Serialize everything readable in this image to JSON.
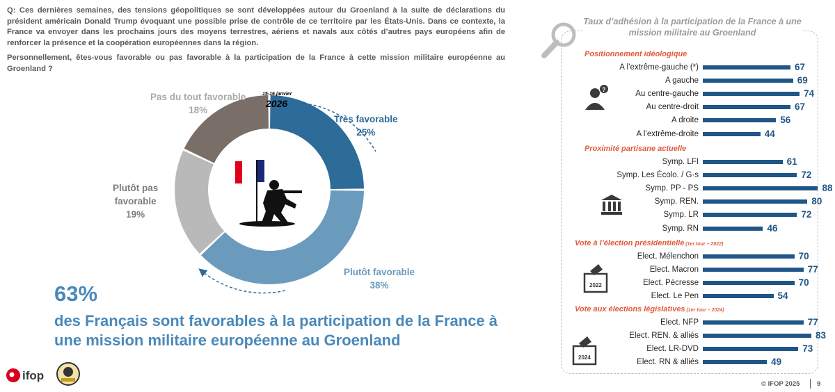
{
  "question": {
    "paragraph1": "Q: Ces dernières semaines, des tensions géopolitiques se sont développées autour du Groenland à la suite de déclarations du président américain Donald Trump évoquant une possible prise de contrôle de ce territoire par les États-Unis. Dans ce contexte, la France va envoyer dans les prochains jours des moyens terrestres, aériens et navals aux côtés d’autres pays européens afin de renforcer la présence et la coopération européennes dans la région.",
    "paragraph2": "Personnellement, êtes-vous favorable ou pas favorable à la participation de la France à cette mission militaire européenne au Groenland ?"
  },
  "donut": {
    "date_small": "15-16 janvier",
    "date_big": "2026",
    "colors": [
      "#2d6b99",
      "#6a9bbd",
      "#b9b9b9",
      "#7a6e68"
    ]
  },
  "headline": {
    "percent": "63%",
    "text": "des Français sont favorables à la participation de la France à une mission militaire européenne au Groenland"
  },
  "right_panel": {
    "title": "Taux d’adhésion à la participation de la France à une mission militaire au Groenland",
    "bar_color": "#1f5687",
    "ballot_year_1": "2022",
    "ballot_year_2": "2024"
  },
  "footer": {
    "copyright": "© IFOP 2025",
    "page": "9",
    "logo_text": "ifop"
  },
  "chart_data": [
    {
      "type": "pie",
      "categories": [
        "Très favorable",
        "Plutôt favorable",
        "Plutôt pas favorable",
        "Pas du tout favorable"
      ],
      "values": [
        25,
        38,
        19,
        18
      ],
      "value_labels": [
        "25%",
        "38%",
        "19%",
        "18%"
      ],
      "label_lines": [
        [
          "Très favorable"
        ],
        [
          "Plutôt favorable"
        ],
        [
          "Plutôt pas",
          "favorable"
        ],
        [
          "Pas du tout favorable"
        ]
      ],
      "title": ""
    },
    {
      "type": "bar",
      "orientation": "horizontal",
      "xlim": [
        0,
        100
      ],
      "sections": [
        {
          "title": "Positionnement idéologique",
          "note": "",
          "categories": [
            "A l’extrême-gauche (*)",
            "A gauche",
            "Au centre-gauche",
            "Au centre-droit",
            "A droite",
            "A l’extrême-droite"
          ],
          "values": [
            67,
            69,
            74,
            67,
            56,
            44
          ]
        },
        {
          "title": "Proximité partisane actuelle",
          "note": "",
          "categories": [
            "Symp. LFI",
            "Symp. Les Écolo. / G·s",
            "Symp. PP - PS",
            "Symp. REN.",
            "Symp. LR",
            "Symp. RN"
          ],
          "values": [
            61,
            72,
            88,
            80,
            72,
            46
          ]
        },
        {
          "title": "Vote à l’élection présidentielle",
          "note": "(1er tour – 2022)",
          "categories": [
            "Elect. Mélenchon",
            "Elect. Macron",
            "Elect. Pécresse",
            "Elect. Le Pen"
          ],
          "values": [
            70,
            77,
            70,
            54
          ]
        },
        {
          "title": "Vote aux élections législatives",
          "note": "(1er tour – 2024)",
          "categories": [
            "Elect. NFP",
            "Elect. REN. & alliés",
            "Elect. LR-DVD",
            "Elect. RN & alliés"
          ],
          "values": [
            77,
            83,
            73,
            49
          ]
        }
      ]
    }
  ]
}
